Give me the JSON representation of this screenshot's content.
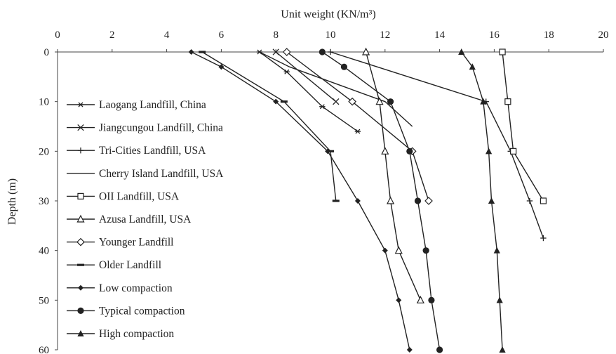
{
  "chart_data": {
    "type": "line",
    "x_title": "Unit weight (KN/m³)",
    "y_title": "Depth (m)",
    "x_axis_position": "top",
    "y_axis_inverted": true,
    "xlim": [
      0,
      20
    ],
    "ylim": [
      0,
      60
    ],
    "x_ticks": [
      "0",
      "2",
      "4",
      "6",
      "8",
      "10",
      "12",
      "14",
      "16",
      "18",
      "20"
    ],
    "y_ticks": [
      "0",
      "10",
      "20",
      "30",
      "40",
      "50",
      "60"
    ],
    "grid": false,
    "legend_position": "left",
    "series": [
      {
        "name": "Laogang Landfill, China",
        "marker": "asterisk",
        "points": [
          [
            7.4,
            0
          ],
          [
            8.4,
            4
          ],
          [
            9.7,
            11
          ],
          [
            11,
            16
          ]
        ]
      },
      {
        "name": "Jiangcungou Landfill, China",
        "marker": "x",
        "points": [
          [
            8,
            0
          ],
          [
            10.2,
            10
          ]
        ]
      },
      {
        "name": "Tri-Cities Landfill, USA",
        "marker": "plus",
        "points": [
          [
            10,
            0
          ],
          [
            15.7,
            10
          ],
          [
            16.6,
            20
          ],
          [
            17.3,
            30
          ],
          [
            17.8,
            37.5
          ]
        ]
      },
      {
        "name": "Cherry Island Landfill, USA",
        "marker": "none",
        "points": [
          [
            7.4,
            0
          ],
          [
            8.5,
            3
          ],
          [
            10.5,
            7
          ],
          [
            12,
            10
          ],
          [
            13,
            15
          ]
        ]
      },
      {
        "name": "OII Landfill, USA",
        "marker": "square",
        "points": [
          [
            16.3,
            0
          ],
          [
            16.5,
            10
          ],
          [
            16.7,
            20
          ],
          [
            17.8,
            30
          ]
        ]
      },
      {
        "name": "Azusa Landfill, USA",
        "marker": "triangle-open",
        "points": [
          [
            11.3,
            0
          ],
          [
            11.8,
            10
          ],
          [
            12,
            20
          ],
          [
            12.2,
            30
          ],
          [
            12.5,
            40
          ],
          [
            13.3,
            50
          ]
        ]
      },
      {
        "name": "Younger Landfill",
        "marker": "diamond-open",
        "points": [
          [
            8.4,
            0
          ],
          [
            10.8,
            10
          ],
          [
            13,
            20
          ],
          [
            13.6,
            30
          ]
        ]
      },
      {
        "name": "Older Landfill",
        "marker": "dash",
        "points": [
          [
            5.3,
            0
          ],
          [
            8.3,
            10
          ],
          [
            10,
            20
          ],
          [
            10.2,
            30
          ]
        ]
      },
      {
        "name": "Low compaction",
        "marker": "diamond-filled",
        "points": [
          [
            4.9,
            0
          ],
          [
            6,
            3
          ],
          [
            8,
            10
          ],
          [
            9.9,
            20
          ],
          [
            11,
            30
          ],
          [
            12,
            40
          ],
          [
            12.5,
            50
          ],
          [
            12.9,
            60
          ]
        ]
      },
      {
        "name": "Typical compaction",
        "marker": "circle-filled",
        "points": [
          [
            9.7,
            0
          ],
          [
            10.5,
            3
          ],
          [
            12.2,
            10
          ],
          [
            12.9,
            20
          ],
          [
            13.2,
            30
          ],
          [
            13.5,
            40
          ],
          [
            13.7,
            50
          ],
          [
            14,
            60
          ]
        ]
      },
      {
        "name": "High compaction",
        "marker": "triangle-filled",
        "points": [
          [
            14.8,
            0
          ],
          [
            15.2,
            3
          ],
          [
            15.6,
            10
          ],
          [
            15.8,
            20
          ],
          [
            15.9,
            30
          ],
          [
            16.1,
            40
          ],
          [
            16.2,
            50
          ],
          [
            16.3,
            60
          ]
        ]
      }
    ]
  }
}
